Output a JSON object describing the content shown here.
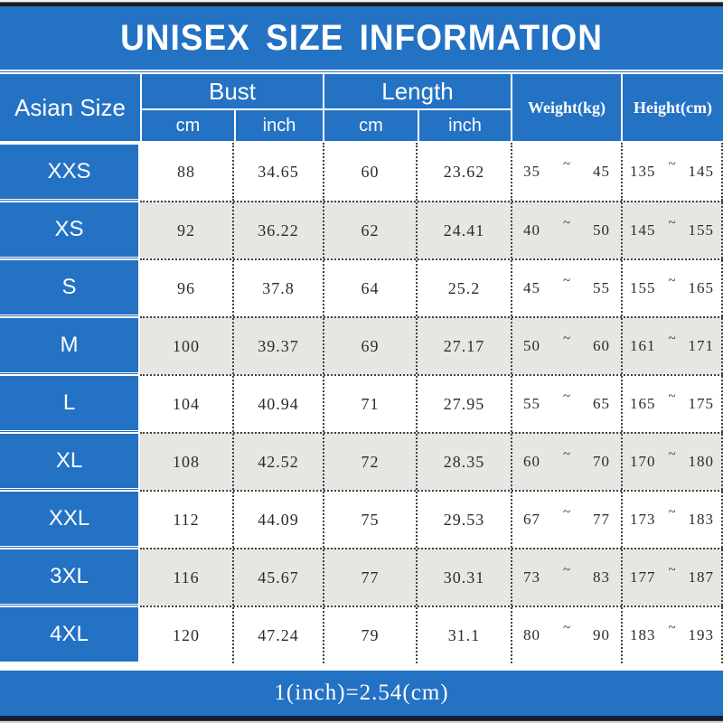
{
  "tilde": "~",
  "colors": {
    "blue": "#2472c4",
    "alt_row": "#e8e6e3",
    "top_bar": "#1b1d24",
    "bottom_bar": "#141e39",
    "text": "#2b2b2b",
    "white": "#ffffff"
  },
  "header": {
    "asian": "Asian Size",
    "bust": "Bust",
    "length": "Length",
    "cm": "cm",
    "inch": "inch",
    "weight": "Weight(kg)",
    "height": "Height(cm)"
  },
  "chart_data": {
    "type": "table",
    "title": "UNISEX SIZE INFORMATION",
    "note": "1(inch)=2.54(cm)",
    "columns": [
      "Asian Size",
      "Bust cm",
      "Bust inch",
      "Length cm",
      "Length inch",
      "Weight(kg)",
      "Height(cm)"
    ],
    "rows": [
      {
        "size": "XXS",
        "bust_cm": "88",
        "bust_inch": "34.65",
        "length_cm": "60",
        "length_inch": "23.62",
        "weight_kg": [
          "35",
          "45"
        ],
        "height_cm": [
          "135",
          "145"
        ]
      },
      {
        "size": "XS",
        "bust_cm": "92",
        "bust_inch": "36.22",
        "length_cm": "62",
        "length_inch": "24.41",
        "weight_kg": [
          "40",
          "50"
        ],
        "height_cm": [
          "145",
          "155"
        ]
      },
      {
        "size": "S",
        "bust_cm": "96",
        "bust_inch": "37.8",
        "length_cm": "64",
        "length_inch": "25.2",
        "weight_kg": [
          "45",
          "55"
        ],
        "height_cm": [
          "155",
          "165"
        ]
      },
      {
        "size": "M",
        "bust_cm": "100",
        "bust_inch": "39.37",
        "length_cm": "69",
        "length_inch": "27.17",
        "weight_kg": [
          "50",
          "60"
        ],
        "height_cm": [
          "161",
          "171"
        ]
      },
      {
        "size": "L",
        "bust_cm": "104",
        "bust_inch": "40.94",
        "length_cm": "71",
        "length_inch": "27.95",
        "weight_kg": [
          "55",
          "65"
        ],
        "height_cm": [
          "165",
          "175"
        ]
      },
      {
        "size": "XL",
        "bust_cm": "108",
        "bust_inch": "42.52",
        "length_cm": "72",
        "length_inch": "28.35",
        "weight_kg": [
          "60",
          "70"
        ],
        "height_cm": [
          "170",
          "180"
        ]
      },
      {
        "size": "XXL",
        "bust_cm": "112",
        "bust_inch": "44.09",
        "length_cm": "75",
        "length_inch": "29.53",
        "weight_kg": [
          "67",
          "77"
        ],
        "height_cm": [
          "173",
          "183"
        ]
      },
      {
        "size": "3XL",
        "bust_cm": "116",
        "bust_inch": "45.67",
        "length_cm": "77",
        "length_inch": "30.31",
        "weight_kg": [
          "73",
          "83"
        ],
        "height_cm": [
          "177",
          "187"
        ]
      },
      {
        "size": "4XL",
        "bust_cm": "120",
        "bust_inch": "47.24",
        "length_cm": "79",
        "length_inch": "31.1",
        "weight_kg": [
          "80",
          "90"
        ],
        "height_cm": [
          "183",
          "193"
        ]
      }
    ]
  }
}
